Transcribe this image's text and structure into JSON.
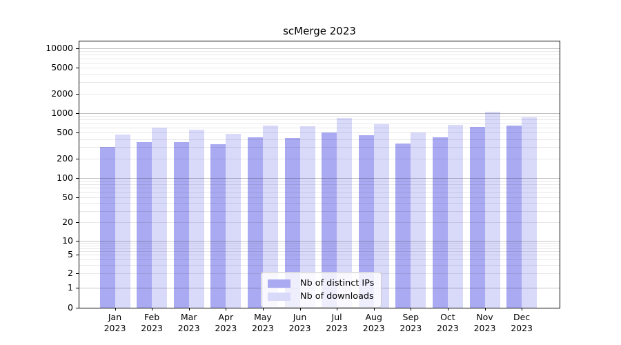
{
  "title": "scMerge 2023",
  "chart_data": {
    "type": "bar",
    "title": "scMerge 2023",
    "categories": [
      "Jan",
      "Feb",
      "Mar",
      "Apr",
      "May",
      "Jun",
      "Jul",
      "Aug",
      "Sep",
      "Oct",
      "Nov",
      "Dec"
    ],
    "x_tick_year": "2023",
    "series": [
      {
        "name": "Nb of distinct IPs",
        "color": "#aaaaf2",
        "values": [
          300,
          360,
          360,
          330,
          430,
          420,
          500,
          463,
          340,
          425,
          615,
          645
        ]
      },
      {
        "name": "Nb of downloads",
        "color": "#d9d9fa",
        "values": [
          465,
          600,
          560,
          487,
          640,
          625,
          845,
          670,
          510,
          655,
          1040,
          855
        ]
      }
    ],
    "xlabel": "",
    "ylabel": "",
    "y_scale": "symlog",
    "y_ticks": [
      0,
      1,
      2,
      5,
      10,
      20,
      50,
      100,
      200,
      500,
      1000,
      2000,
      5000,
      10000
    ],
    "ylim": [
      0,
      13000
    ],
    "grid": true,
    "legend_position": "lower center",
    "axis_color": "#000000",
    "background_color": "#ffffff"
  }
}
